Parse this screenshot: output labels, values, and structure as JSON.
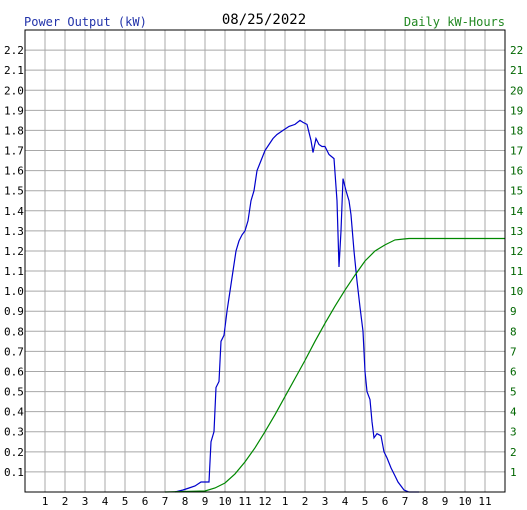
{
  "header": {
    "left_label": "Power Output (kW)",
    "date": "08/25/2022",
    "right_label": "Daily kW-Hours"
  },
  "colors": {
    "power": "#0000cc",
    "energy": "#008800",
    "grid": "#a8a8a8",
    "left_text": "#2233aa",
    "right_text": "#228822"
  },
  "chart_data": {
    "type": "line",
    "title": "08/25/2022",
    "xlim": [
      0,
      24
    ],
    "x_ticks": [
      "1",
      "2",
      "3",
      "4",
      "5",
      "6",
      "7",
      "8",
      "9",
      "10",
      "11",
      "12",
      "1",
      "2",
      "3",
      "4",
      "5",
      "6",
      "7",
      "8",
      "9",
      "10",
      "11"
    ],
    "ylim_left": [
      0,
      2.3
    ],
    "ylim_right": [
      0,
      23
    ],
    "y_ticks_left": [
      "0.1",
      "0.2",
      "0.3",
      "0.4",
      "0.5",
      "0.6",
      "0.7",
      "0.8",
      "0.9",
      "1.0",
      "1.1",
      "1.2",
      "1.3",
      "1.4",
      "1.5",
      "1.6",
      "1.7",
      "1.8",
      "1.9",
      "2.0",
      "2.1",
      "2.2"
    ],
    "y_ticks_right": [
      "1",
      "2",
      "3",
      "4",
      "5",
      "6",
      "7",
      "8",
      "9",
      "10",
      "11",
      "12",
      "13",
      "14",
      "15",
      "16",
      "17",
      "18",
      "19",
      "20",
      "21",
      "22"
    ],
    "grid": true,
    "series": [
      {
        "name": "Power Output (kW)",
        "axis": "left",
        "points": [
          [
            7.5,
            0.0
          ],
          [
            7.9,
            0.01
          ],
          [
            8.2,
            0.02
          ],
          [
            8.5,
            0.03
          ],
          [
            8.8,
            0.05
          ],
          [
            9.2,
            0.05
          ],
          [
            9.3,
            0.25
          ],
          [
            9.45,
            0.3
          ],
          [
            9.55,
            0.52
          ],
          [
            9.7,
            0.55
          ],
          [
            9.8,
            0.75
          ],
          [
            9.95,
            0.78
          ],
          [
            10.1,
            0.9
          ],
          [
            10.25,
            1.0
          ],
          [
            10.4,
            1.1
          ],
          [
            10.55,
            1.2
          ],
          [
            10.7,
            1.25
          ],
          [
            10.85,
            1.28
          ],
          [
            11.0,
            1.3
          ],
          [
            11.15,
            1.35
          ],
          [
            11.3,
            1.45
          ],
          [
            11.45,
            1.5
          ],
          [
            11.6,
            1.6
          ],
          [
            11.8,
            1.65
          ],
          [
            12.0,
            1.7
          ],
          [
            12.2,
            1.73
          ],
          [
            12.4,
            1.76
          ],
          [
            12.6,
            1.78
          ],
          [
            12.9,
            1.8
          ],
          [
            13.2,
            1.82
          ],
          [
            13.5,
            1.83
          ],
          [
            13.75,
            1.85
          ],
          [
            13.9,
            1.84
          ],
          [
            14.1,
            1.83
          ],
          [
            14.3,
            1.75
          ],
          [
            14.4,
            1.69
          ],
          [
            14.55,
            1.76
          ],
          [
            14.7,
            1.73
          ],
          [
            14.85,
            1.72
          ],
          [
            15.0,
            1.72
          ],
          [
            15.2,
            1.68
          ],
          [
            15.45,
            1.66
          ],
          [
            15.6,
            1.45
          ],
          [
            15.7,
            1.12
          ],
          [
            15.8,
            1.3
          ],
          [
            15.9,
            1.56
          ],
          [
            16.05,
            1.5
          ],
          [
            16.2,
            1.45
          ],
          [
            16.3,
            1.38
          ],
          [
            16.45,
            1.2
          ],
          [
            16.6,
            1.05
          ],
          [
            16.75,
            0.92
          ],
          [
            16.9,
            0.8
          ],
          [
            17.0,
            0.6
          ],
          [
            17.1,
            0.5
          ],
          [
            17.25,
            0.46
          ],
          [
            17.35,
            0.35
          ],
          [
            17.45,
            0.27
          ],
          [
            17.6,
            0.29
          ],
          [
            17.8,
            0.28
          ],
          [
            17.95,
            0.2
          ],
          [
            18.1,
            0.17
          ],
          [
            18.3,
            0.12
          ],
          [
            18.5,
            0.08
          ],
          [
            18.65,
            0.05
          ],
          [
            18.8,
            0.03
          ],
          [
            18.95,
            0.01
          ],
          [
            19.2,
            0.0
          ],
          [
            19.7,
            0.0
          ]
        ]
      },
      {
        "name": "Daily kW-Hours",
        "axis": "right",
        "points": [
          [
            7.0,
            0.0
          ],
          [
            9.0,
            0.05
          ],
          [
            9.5,
            0.2
          ],
          [
            10.0,
            0.45
          ],
          [
            10.5,
            0.9
          ],
          [
            11.0,
            1.5
          ],
          [
            11.5,
            2.2
          ],
          [
            12.0,
            3.0
          ],
          [
            12.5,
            3.85
          ],
          [
            13.0,
            4.75
          ],
          [
            13.5,
            5.65
          ],
          [
            14.0,
            6.55
          ],
          [
            14.5,
            7.5
          ],
          [
            15.0,
            8.4
          ],
          [
            15.5,
            9.25
          ],
          [
            16.0,
            10.05
          ],
          [
            16.5,
            10.8
          ],
          [
            17.0,
            11.5
          ],
          [
            17.5,
            12.0
          ],
          [
            18.0,
            12.3
          ],
          [
            18.5,
            12.55
          ],
          [
            19.0,
            12.6
          ],
          [
            19.2,
            12.62
          ],
          [
            24.0,
            12.62
          ]
        ]
      }
    ]
  }
}
